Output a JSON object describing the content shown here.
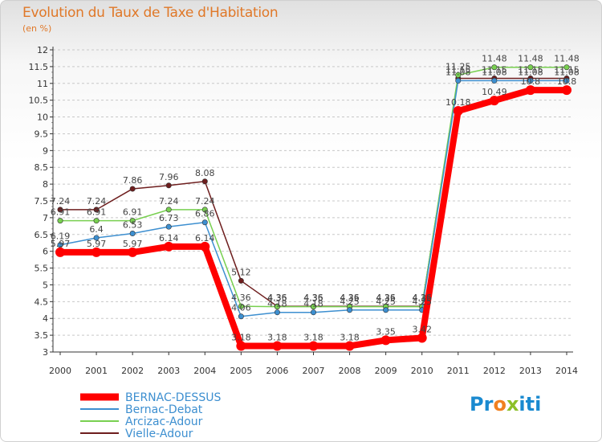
{
  "header": {
    "title": "Evolution du Taux de Taxe d'Habitation",
    "unit": "(en %)"
  },
  "logo": {
    "text": "Proxiti"
  },
  "colors": {
    "axis": "#333333",
    "grid": "#c8c8c8",
    "title": "#e07828"
  },
  "chart_data": {
    "type": "line",
    "title": "Evolution du Taux de Taxe d'Habitation",
    "ylabel": "(en %)",
    "xlabel": "",
    "x": [
      "2000",
      "2001",
      "2002",
      "2003",
      "2004",
      "2005",
      "2006",
      "2007",
      "2008",
      "2009",
      "2010",
      "2011",
      "2012",
      "2013",
      "2014"
    ],
    "yticks": [
      "3",
      "3.5",
      "4",
      "4.5",
      "5",
      "5.5",
      "6",
      "6.5",
      "7",
      "7.5",
      "8",
      "8.5",
      "9",
      "9.5",
      "10",
      "10.5",
      "11",
      "11.5",
      "12"
    ],
    "ylim": [
      3,
      12
    ],
    "grid": "horizontal dashed",
    "legend": "bottom-left",
    "series": [
      {
        "name": "BERNAC-DESSUS",
        "color": "#ff0000",
        "values": [
          5.97,
          5.97,
          5.97,
          6.14,
          6.14,
          3.18,
          3.18,
          3.18,
          3.18,
          3.35,
          3.42,
          10.18,
          10.49,
          10.8,
          10.8
        ],
        "labels": [
          "5.97",
          "5.97",
          "5.97",
          "6.14",
          "6.14",
          "3.18",
          "3.18",
          "3.18",
          "3.18",
          "3.35",
          "3.42",
          "10.18",
          "10.49",
          "10.8",
          "10.8"
        ]
      },
      {
        "name": "Bernac-Debat",
        "color": "#3d8fd0",
        "values": [
          6.19,
          6.4,
          6.53,
          6.73,
          6.86,
          4.06,
          4.18,
          4.18,
          4.25,
          4.25,
          4.25,
          11.08,
          11.08,
          11.08,
          11.08
        ],
        "labels": [
          "6.19",
          "6.4",
          "6.53",
          "6.73",
          "6.86",
          "4.06",
          "4.18",
          "4.18",
          "4.25",
          "4.25",
          "4.25",
          "11.08",
          "11.08",
          "11.08",
          "11.08"
        ]
      },
      {
        "name": "Arcizac-Adour",
        "color": "#78d050",
        "values": [
          6.91,
          6.91,
          6.91,
          7.24,
          7.24,
          4.36,
          4.35,
          4.35,
          4.35,
          4.35,
          4.35,
          11.25,
          11.48,
          11.48,
          11.48
        ],
        "labels": [
          "6.91",
          "6.91",
          "6.91",
          "7.24",
          "7.24",
          "4.36",
          "4.35",
          "4.35",
          "4.35",
          "4.35",
          "4.35",
          "11.25",
          "11.48",
          "11.48",
          "11.48"
        ]
      },
      {
        "name": "Vielle-Adour",
        "color": "#6e1e1e",
        "values": [
          7.24,
          7.24,
          7.86,
          7.96,
          8.08,
          5.12,
          4.36,
          4.36,
          4.36,
          4.36,
          4.36,
          11.15,
          11.15,
          11.15,
          11.15
        ],
        "labels": [
          "7.24",
          "7.24",
          "7.86",
          "7.96",
          "8.08",
          "5.12",
          "4.36",
          "4.36",
          "4.36",
          "4.36",
          "4.36",
          "11.15",
          "11.15",
          "11.15",
          "11.15"
        ]
      }
    ]
  }
}
